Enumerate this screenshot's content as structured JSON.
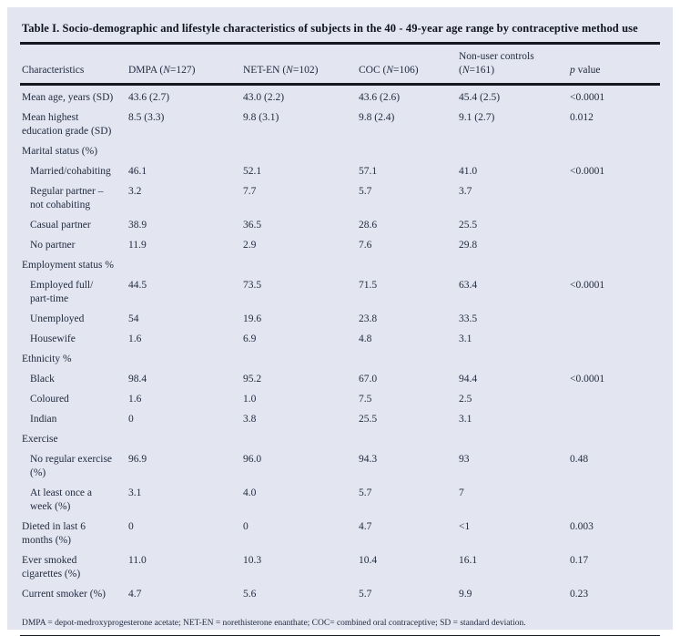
{
  "colors": {
    "panel_background": "#e3e6f0",
    "text": "#222b40",
    "title_text": "#10141d",
    "rule": "#15181f",
    "page_background": "#ffffff"
  },
  "table": {
    "title": "Table I. Socio-demographic and lifestyle characteristics of subjects in the 40 - 49-year age range by contraceptive method use",
    "columns": [
      "Characteristics",
      "DMPA (N=127)",
      "NET-EN (N=102)",
      "COC (N=106)",
      "Non-user controls\n(N=161)",
      "p value"
    ],
    "rows": [
      {
        "label": "Mean age, years (SD)",
        "indent": false,
        "section": false,
        "values": [
          "43.6 (2.7)",
          "43.0 (2.2)",
          "43.6 (2.6)",
          "45.4 (2.5)",
          "<0.0001"
        ]
      },
      {
        "label": "Mean highest\neducation grade (SD)",
        "indent": false,
        "section": false,
        "values": [
          "8.5 (3.3)",
          "9.8 (3.1)",
          "9.8 (2.4)",
          "9.1 (2.7)",
          "0.012"
        ]
      },
      {
        "label": "Marital status (%)",
        "indent": false,
        "section": true,
        "values": [
          "",
          "",
          "",
          "",
          ""
        ]
      },
      {
        "label": "Married/cohabiting",
        "indent": true,
        "section": false,
        "values": [
          "46.1",
          "52.1",
          "57.1",
          "41.0",
          "<0.0001"
        ]
      },
      {
        "label": "Regular partner –\nnot cohabiting",
        "indent": true,
        "section": false,
        "values": [
          "3.2",
          "7.7",
          "5.7",
          "3.7",
          ""
        ]
      },
      {
        "label": "Casual partner",
        "indent": true,
        "section": false,
        "values": [
          "38.9",
          "36.5",
          "28.6",
          "25.5",
          ""
        ]
      },
      {
        "label": "No partner",
        "indent": true,
        "section": false,
        "values": [
          "11.9",
          "2.9",
          "7.6",
          "29.8",
          ""
        ]
      },
      {
        "label": "Employment status %",
        "indent": false,
        "section": true,
        "values": [
          "",
          "",
          "",
          "",
          ""
        ]
      },
      {
        "label": "Employed full/\npart-time",
        "indent": true,
        "section": false,
        "values": [
          "44.5",
          "73.5",
          "71.5",
          "63.4",
          "<0.0001"
        ]
      },
      {
        "label": "Unemployed",
        "indent": true,
        "section": false,
        "values": [
          "54",
          "19.6",
          "23.8",
          "33.5",
          ""
        ]
      },
      {
        "label": "Housewife",
        "indent": true,
        "section": false,
        "values": [
          "1.6",
          "6.9",
          "4.8",
          "3.1",
          ""
        ]
      },
      {
        "label": "Ethnicity %",
        "indent": false,
        "section": true,
        "values": [
          "",
          "",
          "",
          "",
          ""
        ]
      },
      {
        "label": "Black",
        "indent": true,
        "section": false,
        "values": [
          "98.4",
          "95.2",
          "67.0",
          "94.4",
          "<0.0001"
        ]
      },
      {
        "label": "Coloured",
        "indent": true,
        "section": false,
        "values": [
          "1.6",
          "1.0",
          "7.5",
          "2.5",
          ""
        ]
      },
      {
        "label": "Indian",
        "indent": true,
        "section": false,
        "values": [
          "0",
          "3.8",
          "25.5",
          "3.1",
          ""
        ]
      },
      {
        "label": "Exercise",
        "indent": false,
        "section": true,
        "values": [
          "",
          "",
          "",
          "",
          ""
        ]
      },
      {
        "label": "No regular exercise\n(%)",
        "indent": true,
        "section": false,
        "values": [
          "96.9",
          "96.0",
          "94.3",
          "93",
          "0.48"
        ]
      },
      {
        "label": "At least once a\nweek (%)",
        "indent": true,
        "section": false,
        "values": [
          "3.1",
          "4.0",
          "5.7",
          "7",
          ""
        ]
      },
      {
        "label": "Dieted in last 6\nmonths (%)",
        "indent": false,
        "section": false,
        "values": [
          "0",
          "0",
          "4.7",
          "<1",
          "0.003"
        ]
      },
      {
        "label": "Ever smoked\ncigarettes (%)",
        "indent": false,
        "section": false,
        "values": [
          "11.0",
          "10.3",
          "10.4",
          "16.1",
          "0.17"
        ]
      },
      {
        "label": "Current smoker (%)",
        "indent": false,
        "section": false,
        "values": [
          "4.7",
          "5.6",
          "5.7",
          "9.9",
          "0.23"
        ]
      }
    ],
    "footnote": "DMPA = depot-medroxyprogesterone acetate; NET-EN = norethisterone enanthate; COC= combined oral contraceptive; SD = standard deviation."
  }
}
